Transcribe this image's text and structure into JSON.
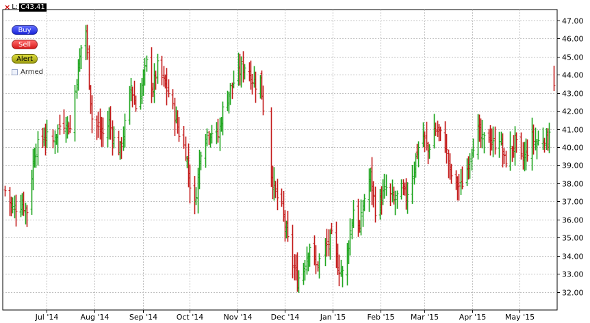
{
  "toolbar": {
    "close_glyph": "×",
    "last_label": "L:",
    "last_value": "C43.41"
  },
  "buttons": {
    "buy": "Buy",
    "sell": "Sell",
    "alert": "Alert"
  },
  "armed_label": "Armed",
  "colors": {
    "up": "#1fa51f",
    "down": "#c31919",
    "grid": "#bfbfbf",
    "axis": "#000000"
  },
  "chart_data": {
    "type": "ohlc",
    "x_tick_labels": [
      "Jul '14",
      "Aug '14",
      "Sep '14",
      "Oct '14",
      "Nov '14",
      "Dec '14",
      "Jan '15",
      "Feb '15",
      "Mar '15",
      "Apr '15",
      "May '15"
    ],
    "y_ticks": [
      32.0,
      33.0,
      34.0,
      35.0,
      36.0,
      37.0,
      38.0,
      39.0,
      40.0,
      41.0,
      42.0,
      43.0,
      44.0,
      45.0,
      46.0,
      47.0
    ],
    "y_tick_labels": [
      "32.00",
      "33.00",
      "34.00",
      "35.00",
      "36.00",
      "37.00",
      "38.00",
      "39.00",
      "40.00",
      "41.00",
      "42.00",
      "43.00",
      "44.00",
      "45.00",
      "46.00",
      "47.00"
    ],
    "ylim": [
      31.0,
      47.6
    ],
    "x_range": [
      "2014-06-13",
      "2015-06-01"
    ],
    "grid": true,
    "y_axis_side": "right",
    "last_close": 43.41,
    "approx_close_path": [
      [
        "2014-06-13",
        37.6
      ],
      [
        "2014-06-18",
        36.6
      ],
      [
        "2014-06-24",
        36.9
      ],
      [
        "2014-06-27",
        36.5
      ],
      [
        "2014-07-02",
        39.8
      ],
      [
        "2014-07-08",
        40.6
      ],
      [
        "2014-07-14",
        40.3
      ],
      [
        "2014-07-18",
        41.2
      ],
      [
        "2014-07-22",
        41.4
      ],
      [
        "2014-07-25",
        41.0
      ],
      [
        "2014-07-29",
        43.8
      ],
      [
        "2014-08-01",
        45.5
      ],
      [
        "2014-08-04",
        46.4
      ],
      [
        "2014-08-06",
        43.7
      ],
      [
        "2014-08-08",
        41.6
      ],
      [
        "2014-08-12",
        41.0
      ],
      [
        "2014-08-15",
        40.7
      ],
      [
        "2014-08-19",
        41.4
      ],
      [
        "2014-08-22",
        40.4
      ],
      [
        "2014-08-26",
        39.8
      ],
      [
        "2014-08-29",
        41.2
      ],
      [
        "2014-09-02",
        43.4
      ],
      [
        "2014-09-05",
        42.2
      ],
      [
        "2014-09-09",
        43.4
      ],
      [
        "2014-09-12",
        44.6
      ],
      [
        "2014-09-16",
        43.2
      ],
      [
        "2014-09-19",
        44.4
      ],
      [
        "2014-09-23",
        43.6
      ],
      [
        "2014-09-26",
        43.0
      ],
      [
        "2014-09-30",
        41.8
      ],
      [
        "2014-10-03",
        40.8
      ],
      [
        "2014-10-07",
        39.8
      ],
      [
        "2014-10-10",
        38.0
      ],
      [
        "2014-10-13",
        36.8
      ],
      [
        "2014-10-15",
        38.4
      ],
      [
        "2014-10-17",
        39.9
      ],
      [
        "2014-10-21",
        40.8
      ],
      [
        "2014-10-24",
        40.9
      ],
      [
        "2014-10-28",
        40.6
      ],
      [
        "2014-10-31",
        42.0
      ],
      [
        "2014-11-04",
        43.0
      ],
      [
        "2014-11-07",
        43.6
      ],
      [
        "2014-11-11",
        44.2
      ],
      [
        "2014-11-14",
        44.5
      ],
      [
        "2014-11-18",
        43.9
      ],
      [
        "2014-11-21",
        43.5
      ],
      [
        "2014-11-24",
        43.7
      ],
      [
        "2014-12-01",
        38.5
      ],
      [
        "2014-12-04",
        37.4
      ],
      [
        "2014-12-08",
        36.6
      ],
      [
        "2014-12-11",
        35.2
      ],
      [
        "2014-12-15",
        33.6
      ],
      [
        "2014-12-18",
        32.6
      ],
      [
        "2014-12-22",
        33.4
      ],
      [
        "2014-12-26",
        34.6
      ],
      [
        "2014-12-30",
        33.4
      ],
      [
        "2015-01-05",
        34.4
      ],
      [
        "2015-01-09",
        35.0
      ],
      [
        "2015-01-13",
        33.5
      ],
      [
        "2015-01-16",
        33.0
      ],
      [
        "2015-01-20",
        34.7
      ],
      [
        "2015-01-23",
        36.6
      ],
      [
        "2015-01-27",
        35.4
      ],
      [
        "2015-01-30",
        37.2
      ],
      [
        "2015-02-03",
        38.4
      ],
      [
        "2015-02-06",
        36.6
      ],
      [
        "2015-02-10",
        37.2
      ],
      [
        "2015-02-13",
        37.7
      ],
      [
        "2015-02-18",
        37.0
      ],
      [
        "2015-02-23",
        37.6
      ],
      [
        "2015-02-26",
        37.2
      ],
      [
        "2015-03-02",
        38.6
      ],
      [
        "2015-03-05",
        39.8
      ],
      [
        "2015-03-09",
        40.6
      ],
      [
        "2015-03-12",
        39.8
      ],
      [
        "2015-03-16",
        41.0
      ],
      [
        "2015-03-19",
        40.8
      ],
      [
        "2015-03-23",
        40.2
      ],
      [
        "2015-03-26",
        38.6
      ],
      [
        "2015-03-30",
        38.0
      ],
      [
        "2015-04-02",
        37.8
      ],
      [
        "2015-04-06",
        38.8
      ],
      [
        "2015-04-09",
        40.0
      ],
      [
        "2015-04-13",
        40.9
      ],
      [
        "2015-04-16",
        40.3
      ],
      [
        "2015-04-20",
        40.6
      ],
      [
        "2015-04-23",
        40.1
      ],
      [
        "2015-04-27",
        40.6
      ],
      [
        "2015-04-30",
        39.2
      ],
      [
        "2015-05-04",
        39.8
      ],
      [
        "2015-05-07",
        40.3
      ],
      [
        "2015-05-11",
        39.3
      ],
      [
        "2015-05-14",
        39.6
      ],
      [
        "2015-05-18",
        40.5
      ],
      [
        "2015-05-21",
        40.2
      ],
      [
        "2015-05-26",
        40.6
      ],
      [
        "2015-05-28",
        40.3
      ],
      [
        "2015-06-01",
        43.41
      ]
    ]
  }
}
